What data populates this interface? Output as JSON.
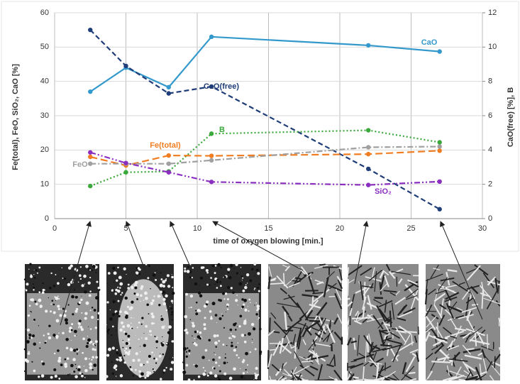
{
  "chart_data": {
    "type": "line",
    "x": [
      2.5,
      5,
      8,
      11,
      22,
      27
    ],
    "xlabel": "time of oxygen blowing [min.]",
    "ylabel": "Fe(total), FeO, SiO₂, CaO [%]",
    "y2label": "CaO(free) [%], B",
    "xlim": [
      0,
      30
    ],
    "xticks": [
      0,
      5,
      10,
      15,
      20,
      25,
      30
    ],
    "ylim": [
      0,
      60
    ],
    "yticks": [
      0,
      10,
      20,
      30,
      40,
      50,
      60
    ],
    "y2lim": [
      0,
      12
    ],
    "y2ticks": [
      0,
      2,
      4,
      6,
      8,
      10,
      12
    ],
    "grid": true,
    "series": [
      {
        "name": "CaO",
        "color": "#3399cc",
        "dash": "none",
        "values": [
          37,
          44,
          38.3,
          53,
          50.5,
          48.7
        ]
      },
      {
        "name": "CaO(free)",
        "color": "#1f3d78",
        "dash": "7 4",
        "axis": "y2",
        "values": [
          11,
          8.9,
          7.3,
          7.7,
          2.9,
          0.55
        ]
      },
      {
        "name": "B",
        "color": "#3aa83a",
        "dash": "2 3",
        "axis": "y2",
        "values": [
          1.9,
          2.7,
          2.75,
          4.95,
          5.15,
          4.45
        ]
      },
      {
        "name": "Fe(total)",
        "color": "#f07d22",
        "dash": "10 5",
        "values": [
          18,
          15.5,
          18.4,
          18.3,
          18.8,
          19.8
        ]
      },
      {
        "name": "FeO",
        "color": "#a0a0a0",
        "dash": "8 3 2 3",
        "values": [
          16,
          16,
          16,
          17,
          20.8,
          21
        ]
      },
      {
        "name": "SiO₂",
        "color": "#8a2fc0",
        "dash": "8 3 2 3 2 3",
        "values": [
          19.3,
          16.2,
          13.5,
          10.7,
          9.8,
          10.8
        ]
      }
    ]
  }
}
